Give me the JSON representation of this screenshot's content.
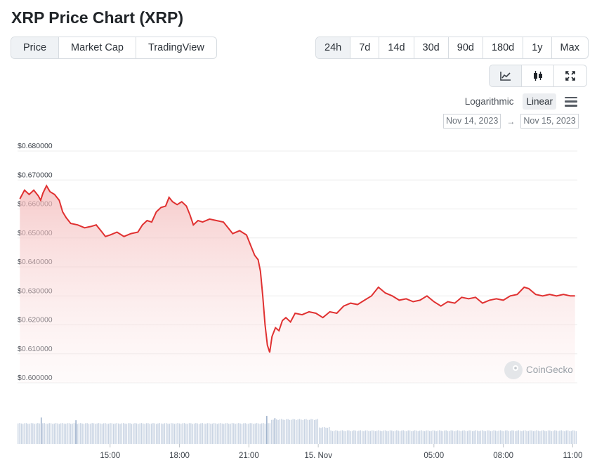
{
  "title": "XRP Price Chart (XRP)",
  "tabs": [
    {
      "label": "Price",
      "active": true
    },
    {
      "label": "Market Cap",
      "active": false
    },
    {
      "label": "TradingView",
      "active": false
    }
  ],
  "ranges": [
    {
      "label": "24h",
      "active": true
    },
    {
      "label": "7d",
      "active": false
    },
    {
      "label": "14d",
      "active": false
    },
    {
      "label": "30d",
      "active": false
    },
    {
      "label": "90d",
      "active": false
    },
    {
      "label": "180d",
      "active": false
    },
    {
      "label": "1y",
      "active": false
    },
    {
      "label": "Max",
      "active": false
    }
  ],
  "view_icons": [
    "line-chart-icon",
    "candlestick-icon",
    "fullscreen-icon"
  ],
  "scale": {
    "log_label": "Logarithmic",
    "linear_label": "Linear",
    "active": "Linear"
  },
  "date_range": {
    "from": "Nov 14, 2023",
    "arrow": "→",
    "to": "Nov 15, 2023"
  },
  "credit": "CoinGecko",
  "colors": {
    "line": "#e03131",
    "fill": "#f8d7d7",
    "volume": "#c9d4e3",
    "grid": "#ececec"
  },
  "chart_data": {
    "type": "area",
    "title": "XRP Price Chart (XRP)",
    "xlabel": "",
    "ylabel": "",
    "ylim": [
      0.6,
      0.68
    ],
    "yticks": [
      "$0.680000",
      "$0.670000",
      "$0.660000",
      "$0.650000",
      "$0.640000",
      "$0.630000",
      "$0.620000",
      "$0.610000",
      "$0.600000"
    ],
    "xticks": [
      {
        "h": 15,
        "label": "15:00"
      },
      {
        "h": 18,
        "label": "18:00"
      },
      {
        "h": 21,
        "label": "21:00"
      },
      {
        "h": 24,
        "label": "15. Nov"
      },
      {
        "h": 29,
        "label": "05:00"
      },
      {
        "h": 32,
        "label": "08:00"
      },
      {
        "h": 35,
        "label": "11:00"
      }
    ],
    "x_unit": "hour (Nov 14)",
    "grid": true,
    "series": [
      {
        "points": [
          [
            11.1,
            0.6635
          ],
          [
            11.3,
            0.6665
          ],
          [
            11.5,
            0.665
          ],
          [
            11.7,
            0.6665
          ],
          [
            11.9,
            0.6645
          ],
          [
            12.0,
            0.663
          ],
          [
            12.1,
            0.6655
          ],
          [
            12.25,
            0.668
          ],
          [
            12.4,
            0.666
          ],
          [
            12.6,
            0.665
          ],
          [
            12.8,
            0.663
          ],
          [
            12.95,
            0.659
          ],
          [
            13.1,
            0.657
          ],
          [
            13.3,
            0.655
          ],
          [
            13.6,
            0.6545
          ],
          [
            13.9,
            0.6535
          ],
          [
            14.2,
            0.654
          ],
          [
            14.4,
            0.6545
          ],
          [
            14.6,
            0.6525
          ],
          [
            14.8,
            0.6505
          ],
          [
            15.0,
            0.651
          ],
          [
            15.3,
            0.652
          ],
          [
            15.6,
            0.6505
          ],
          [
            15.9,
            0.6515
          ],
          [
            16.2,
            0.652
          ],
          [
            16.4,
            0.6545
          ],
          [
            16.6,
            0.656
          ],
          [
            16.8,
            0.6555
          ],
          [
            17.0,
            0.659
          ],
          [
            17.2,
            0.6605
          ],
          [
            17.4,
            0.661
          ],
          [
            17.55,
            0.664
          ],
          [
            17.7,
            0.6625
          ],
          [
            17.9,
            0.6615
          ],
          [
            18.1,
            0.6625
          ],
          [
            18.3,
            0.661
          ],
          [
            18.45,
            0.658
          ],
          [
            18.6,
            0.6545
          ],
          [
            18.8,
            0.656
          ],
          [
            19.0,
            0.6555
          ],
          [
            19.3,
            0.6565
          ],
          [
            19.6,
            0.656
          ],
          [
            19.9,
            0.6555
          ],
          [
            20.1,
            0.6535
          ],
          [
            20.3,
            0.6515
          ],
          [
            20.6,
            0.6525
          ],
          [
            20.9,
            0.651
          ],
          [
            21.1,
            0.647
          ],
          [
            21.25,
            0.644
          ],
          [
            21.4,
            0.6425
          ],
          [
            21.5,
            0.6385
          ],
          [
            21.6,
            0.63
          ],
          [
            21.7,
            0.62
          ],
          [
            21.8,
            0.613
          ],
          [
            21.9,
            0.6105
          ],
          [
            22.0,
            0.616
          ],
          [
            22.15,
            0.619
          ],
          [
            22.3,
            0.618
          ],
          [
            22.45,
            0.6215
          ],
          [
            22.6,
            0.6225
          ],
          [
            22.8,
            0.621
          ],
          [
            23.0,
            0.624
          ],
          [
            23.3,
            0.6235
          ],
          [
            23.6,
            0.6245
          ],
          [
            23.9,
            0.624
          ],
          [
            24.2,
            0.6225
          ],
          [
            24.5,
            0.6245
          ],
          [
            24.8,
            0.624
          ],
          [
            25.1,
            0.6265
          ],
          [
            25.4,
            0.6275
          ],
          [
            25.7,
            0.627
          ],
          [
            26.0,
            0.6285
          ],
          [
            26.3,
            0.63
          ],
          [
            26.6,
            0.633
          ],
          [
            26.9,
            0.631
          ],
          [
            27.2,
            0.63
          ],
          [
            27.5,
            0.6285
          ],
          [
            27.8,
            0.629
          ],
          [
            28.1,
            0.628
          ],
          [
            28.4,
            0.6285
          ],
          [
            28.7,
            0.63
          ],
          [
            29.0,
            0.628
          ],
          [
            29.3,
            0.6265
          ],
          [
            29.6,
            0.628
          ],
          [
            29.9,
            0.6275
          ],
          [
            30.2,
            0.6295
          ],
          [
            30.5,
            0.629
          ],
          [
            30.8,
            0.6295
          ],
          [
            31.1,
            0.6275
          ],
          [
            31.4,
            0.6285
          ],
          [
            31.7,
            0.629
          ],
          [
            32.0,
            0.6285
          ],
          [
            32.3,
            0.63
          ],
          [
            32.6,
            0.6305
          ],
          [
            32.9,
            0.633
          ],
          [
            33.1,
            0.6325
          ],
          [
            33.4,
            0.6305
          ],
          [
            33.7,
            0.63
          ],
          [
            34.0,
            0.6305
          ],
          [
            34.3,
            0.63
          ],
          [
            34.6,
            0.6305
          ],
          [
            34.9,
            0.63
          ],
          [
            35.1,
            0.63
          ]
        ]
      }
    ],
    "volume": {
      "note": "relative volume bars (0-1)",
      "segments": [
        {
          "from": 11.0,
          "to": 21.9,
          "level": 0.62
        },
        {
          "from": 21.9,
          "to": 24.0,
          "level": 0.74
        },
        {
          "from": 24.0,
          "to": 24.5,
          "level": 0.5
        },
        {
          "from": 24.5,
          "to": 35.2,
          "level": 0.4
        }
      ],
      "spikes": [
        {
          "h": 12.0,
          "level": 0.8
        },
        {
          "h": 13.5,
          "level": 0.72
        },
        {
          "h": 21.75,
          "level": 0.85
        },
        {
          "h": 22.1,
          "level": 0.78
        }
      ]
    }
  }
}
